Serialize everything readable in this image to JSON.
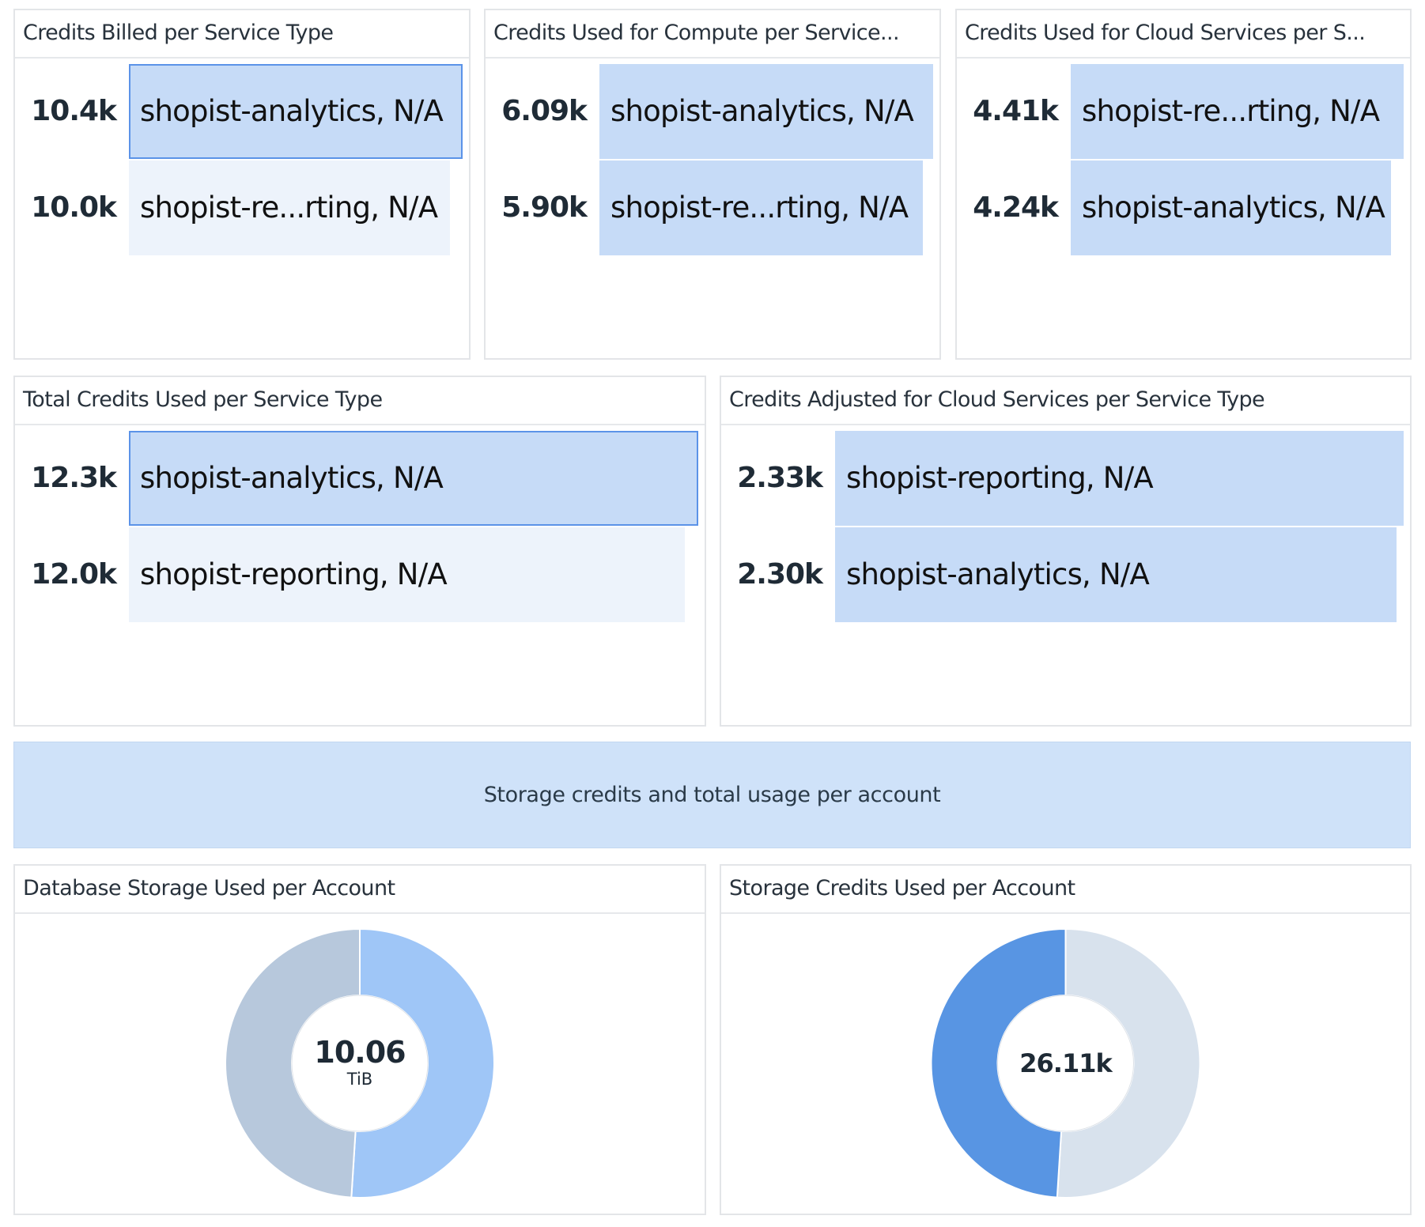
{
  "toplists": [
    {
      "title": "Credits Billed per Service Type",
      "rows": [
        {
          "value": "10.4k",
          "label": "shopist-analytics, N/A",
          "fill": 1.0,
          "style": "selected"
        },
        {
          "value": "10.0k",
          "label": "shopist-re...rting, N/A",
          "fill": 0.962,
          "style": "light"
        }
      ]
    },
    {
      "title": "Credits Used for Compute per Service...",
      "rows": [
        {
          "value": "6.09k",
          "label": "shopist-analytics, N/A",
          "fill": 1.0,
          "style": "normal"
        },
        {
          "value": "5.90k",
          "label": "shopist-re...rting, N/A",
          "fill": 0.969,
          "style": "normal"
        }
      ]
    },
    {
      "title": "Credits Used for Cloud Services per S...",
      "rows": [
        {
          "value": "4.41k",
          "label": "shopist-re...rting, N/A",
          "fill": 1.0,
          "style": "normal"
        },
        {
          "value": "4.24k",
          "label": "shopist-analytics, N/A",
          "fill": 0.961,
          "style": "normal"
        }
      ]
    },
    {
      "title": "Total Credits Used per Service Type",
      "rows": [
        {
          "value": "12.3k",
          "label": "shopist-analytics, N/A",
          "fill": 1.0,
          "style": "selected"
        },
        {
          "value": "12.0k",
          "label": "shopist-reporting, N/A",
          "fill": 0.976,
          "style": "light"
        }
      ]
    },
    {
      "title": "Credits Adjusted for Cloud Services per Service Type",
      "rows": [
        {
          "value": "2.33k",
          "label": "shopist-reporting, N/A",
          "fill": 1.0,
          "style": "normal"
        },
        {
          "value": "2.30k",
          "label": "shopist-analytics, N/A",
          "fill": 0.987,
          "style": "normal"
        }
      ]
    }
  ],
  "banner": {
    "text": "Storage credits and total usage per account"
  },
  "donuts": [
    {
      "title": "Database Storage Used per Account",
      "total": "10.06",
      "unit": "TiB",
      "slices": [
        {
          "share": 0.51,
          "color": "#9fc6f7"
        },
        {
          "share": 0.49,
          "color": "#b7c8dc"
        }
      ]
    },
    {
      "title": "Storage Credits Used per Account",
      "total": "26.11k",
      "unit": "",
      "slices": [
        {
          "share": 0.51,
          "color": "#d8e2ed"
        },
        {
          "share": 0.49,
          "color": "#5895e3"
        }
      ]
    }
  ],
  "colors": {
    "selected_bar": "#c6dbf7",
    "selected_border": "#5b93e8",
    "normal_bar": "#c6dbf7",
    "light_bar": "#edf3fb",
    "banner": "#cfe2f9"
  }
}
